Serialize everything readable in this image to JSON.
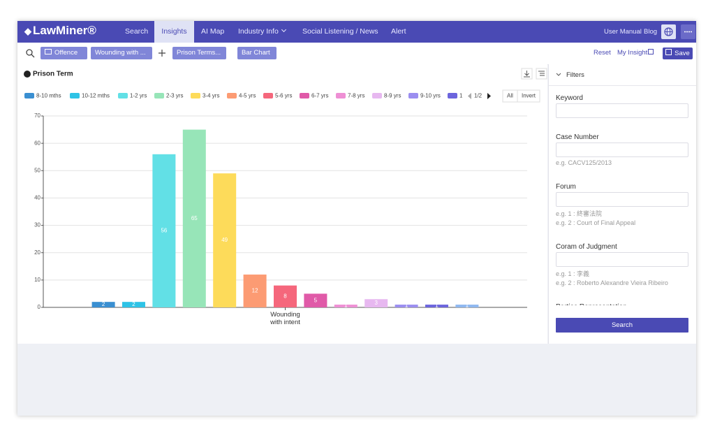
{
  "nav": {
    "logo": "LawMiner®",
    "items": [
      "Search",
      "Insights",
      "AI Map",
      "Industry Info",
      "Social Listening / News",
      "Alert"
    ],
    "right": [
      "User Manual",
      "Blog"
    ]
  },
  "toolbar": {
    "chips": [
      "Offence",
      "Wounding with ..."
    ],
    "selectors": [
      "Prison Terms...",
      "Bar Chart"
    ],
    "actions": [
      "Reset",
      "My Insight",
      "Save"
    ]
  },
  "chart_data": {
    "type": "bar",
    "title": "Prison Term",
    "categories": [
      "Wounding with intent"
    ],
    "series": [
      {
        "name": "8-10 mths",
        "color": "#3a8fd1",
        "values": [
          2
        ]
      },
      {
        "name": "10-12 mths",
        "color": "#2ec3e6",
        "values": [
          2
        ]
      },
      {
        "name": "1-2 yrs",
        "color": "#62e0e6",
        "values": [
          56
        ]
      },
      {
        "name": "2-3 yrs",
        "color": "#97e5b8",
        "values": [
          65
        ]
      },
      {
        "name": "3-4 yrs",
        "color": "#fddb5a",
        "values": [
          49
        ]
      },
      {
        "name": "4-5 yrs",
        "color": "#fc9b73",
        "values": [
          12
        ]
      },
      {
        "name": "5-6 yrs",
        "color": "#f5677c",
        "values": [
          8
        ]
      },
      {
        "name": "6-7 yrs",
        "color": "#e05aa8",
        "values": [
          5
        ]
      },
      {
        "name": "7-8 yrs",
        "color": "#ee8fd4",
        "values": [
          1
        ]
      },
      {
        "name": "8-9 yrs",
        "color": "#e7b8f0",
        "values": [
          3
        ]
      },
      {
        "name": "9-10 yrs",
        "color": "#9b8ef0",
        "values": [
          1
        ]
      },
      {
        "name": "1",
        "color": "#6c65dd",
        "values": [
          1
        ]
      },
      {
        "color": "#8fb8f0",
        "values": [
          1
        ]
      }
    ],
    "ylim": [
      0,
      70
    ],
    "yticks": [
      0,
      10,
      20,
      30,
      40,
      50,
      60,
      70
    ],
    "grid": true,
    "legend_page": "1/2",
    "legend_buttons": [
      "All",
      "Invert"
    ]
  },
  "filters": {
    "title": "Filters",
    "fields": [
      {
        "label": "Keyword",
        "hints": []
      },
      {
        "label": "Case Number",
        "hints": [
          "e.g. CACV125/2013"
        ]
      },
      {
        "label": "Forum",
        "hints": [
          "e.g. 1 : 終審法院",
          "e.g. 2 : Court of Final Appeal"
        ]
      },
      {
        "label": "Coram of Judgment",
        "hints": [
          "e.g. 1 : 李義",
          "e.g. 2 : Roberto Alexandre Vieira Ribeiro"
        ]
      },
      {
        "label": "Parties Representation",
        "hints": []
      }
    ],
    "button": "Search"
  }
}
